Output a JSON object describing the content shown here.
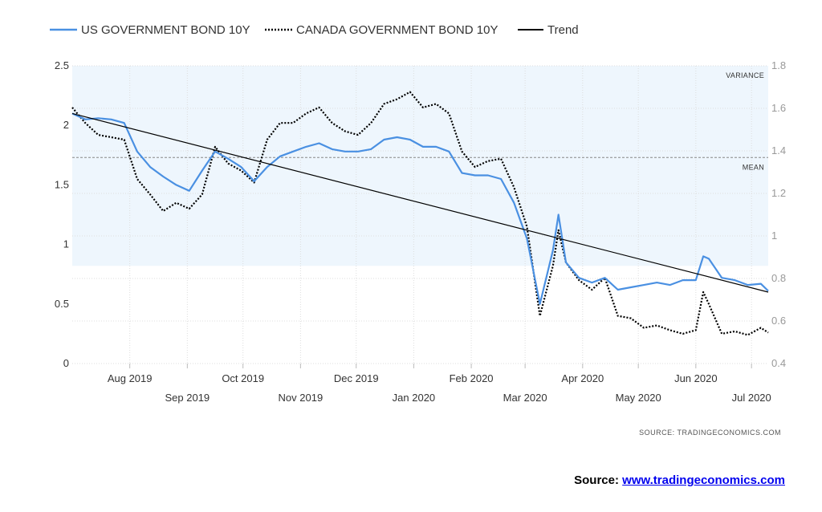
{
  "chart_data": {
    "type": "line",
    "legend": {
      "placement": "top-left",
      "entries": [
        "US GOVERNMENT BOND 10Y",
        "CANADA GOVERNMENT BOND 10Y",
        "Trend"
      ]
    },
    "x_range": [
      "2019-07-01",
      "2020-07-10"
    ],
    "x_ticks": [
      {
        "label": "Aug 2019",
        "date": "2019-08-01",
        "row": 1
      },
      {
        "label": "Sep 2019",
        "date": "2019-09-01",
        "row": 2
      },
      {
        "label": "Oct 2019",
        "date": "2019-10-01",
        "row": 1
      },
      {
        "label": "Nov 2019",
        "date": "2019-11-01",
        "row": 2
      },
      {
        "label": "Dec 2019",
        "date": "2019-12-01",
        "row": 1
      },
      {
        "label": "Jan 2020",
        "date": "2020-01-01",
        "row": 2
      },
      {
        "label": "Feb 2020",
        "date": "2020-02-01",
        "row": 1
      },
      {
        "label": "Mar 2020",
        "date": "2020-03-01",
        "row": 2
      },
      {
        "label": "Apr 2020",
        "date": "2020-04-01",
        "row": 1
      },
      {
        "label": "May 2020",
        "date": "2020-05-01",
        "row": 2
      },
      {
        "label": "Jun 2020",
        "date": "2020-06-01",
        "row": 1
      },
      {
        "label": "Jul 2020",
        "date": "2020-07-01",
        "row": 2
      }
    ],
    "y_left": {
      "min": 0,
      "max": 2.5,
      "ticks": [
        "0",
        "0.5",
        "1",
        "1.5",
        "2",
        "2.5"
      ]
    },
    "y_right": {
      "min": 0.4,
      "max": 1.8,
      "ticks": [
        "0.4",
        "0.6",
        "0.8",
        "1",
        "1.2",
        "1.4",
        "1.6",
        "1.8"
      ]
    },
    "grid": true,
    "variance_band": {
      "label": "VARIANCE",
      "from": 0.82,
      "to": 2.5
    },
    "mean_line": {
      "label": "MEAN",
      "value": 1.73
    },
    "source_label": "SOURCE: TRADINGECONOMICS.COM",
    "series": [
      {
        "name": "US GOVERNMENT BOND 10Y",
        "style": "solid",
        "color": "#4a90e2",
        "points": [
          [
            "2019-07-01",
            2.1
          ],
          [
            "2019-07-08",
            2.05
          ],
          [
            "2019-07-15",
            2.06
          ],
          [
            "2019-07-22",
            2.05
          ],
          [
            "2019-07-29",
            2.02
          ],
          [
            "2019-08-05",
            1.78
          ],
          [
            "2019-08-12",
            1.65
          ],
          [
            "2019-08-19",
            1.57
          ],
          [
            "2019-08-26",
            1.5
          ],
          [
            "2019-09-02",
            1.45
          ],
          [
            "2019-09-09",
            1.62
          ],
          [
            "2019-09-16",
            1.78
          ],
          [
            "2019-09-23",
            1.72
          ],
          [
            "2019-09-30",
            1.65
          ],
          [
            "2019-10-07",
            1.53
          ],
          [
            "2019-10-14",
            1.65
          ],
          [
            "2019-10-21",
            1.74
          ],
          [
            "2019-10-28",
            1.78
          ],
          [
            "2019-11-04",
            1.82
          ],
          [
            "2019-11-11",
            1.85
          ],
          [
            "2019-11-18",
            1.8
          ],
          [
            "2019-11-25",
            1.78
          ],
          [
            "2019-12-02",
            1.78
          ],
          [
            "2019-12-09",
            1.8
          ],
          [
            "2019-12-16",
            1.88
          ],
          [
            "2019-12-23",
            1.9
          ],
          [
            "2019-12-30",
            1.88
          ],
          [
            "2020-01-06",
            1.82
          ],
          [
            "2020-01-13",
            1.82
          ],
          [
            "2020-01-20",
            1.78
          ],
          [
            "2020-01-27",
            1.6
          ],
          [
            "2020-02-03",
            1.58
          ],
          [
            "2020-02-10",
            1.58
          ],
          [
            "2020-02-17",
            1.55
          ],
          [
            "2020-02-24",
            1.35
          ],
          [
            "2020-03-02",
            1.05
          ],
          [
            "2020-03-09",
            0.5
          ],
          [
            "2020-03-16",
            0.95
          ],
          [
            "2020-03-19",
            1.25
          ],
          [
            "2020-03-23",
            0.85
          ],
          [
            "2020-03-30",
            0.72
          ],
          [
            "2020-04-06",
            0.68
          ],
          [
            "2020-04-13",
            0.72
          ],
          [
            "2020-04-20",
            0.62
          ],
          [
            "2020-04-27",
            0.64
          ],
          [
            "2020-05-04",
            0.66
          ],
          [
            "2020-05-11",
            0.68
          ],
          [
            "2020-05-18",
            0.66
          ],
          [
            "2020-05-25",
            0.7
          ],
          [
            "2020-06-01",
            0.7
          ],
          [
            "2020-06-05",
            0.9
          ],
          [
            "2020-06-08",
            0.88
          ],
          [
            "2020-06-15",
            0.72
          ],
          [
            "2020-06-22",
            0.7
          ],
          [
            "2020-06-29",
            0.66
          ],
          [
            "2020-07-06",
            0.67
          ],
          [
            "2020-07-10",
            0.61
          ]
        ]
      },
      {
        "name": "CANADA GOVERNMENT BOND 10Y",
        "style": "dotted",
        "color": "#000000",
        "points": [
          [
            "2019-07-01",
            2.15
          ],
          [
            "2019-07-08",
            2.02
          ],
          [
            "2019-07-15",
            1.92
          ],
          [
            "2019-07-22",
            1.9
          ],
          [
            "2019-07-29",
            1.88
          ],
          [
            "2019-08-05",
            1.55
          ],
          [
            "2019-08-12",
            1.42
          ],
          [
            "2019-08-19",
            1.28
          ],
          [
            "2019-08-26",
            1.35
          ],
          [
            "2019-09-02",
            1.3
          ],
          [
            "2019-09-09",
            1.42
          ],
          [
            "2019-09-16",
            1.82
          ],
          [
            "2019-09-23",
            1.68
          ],
          [
            "2019-09-30",
            1.62
          ],
          [
            "2019-10-07",
            1.52
          ],
          [
            "2019-10-14",
            1.88
          ],
          [
            "2019-10-21",
            2.02
          ],
          [
            "2019-10-28",
            2.02
          ],
          [
            "2019-11-04",
            2.1
          ],
          [
            "2019-11-11",
            2.15
          ],
          [
            "2019-11-18",
            2.02
          ],
          [
            "2019-11-25",
            1.95
          ],
          [
            "2019-12-02",
            1.92
          ],
          [
            "2019-12-09",
            2.02
          ],
          [
            "2019-12-16",
            2.18
          ],
          [
            "2019-12-23",
            2.22
          ],
          [
            "2019-12-30",
            2.28
          ],
          [
            "2020-01-06",
            2.15
          ],
          [
            "2020-01-13",
            2.18
          ],
          [
            "2020-01-20",
            2.1
          ],
          [
            "2020-01-27",
            1.78
          ],
          [
            "2020-02-03",
            1.65
          ],
          [
            "2020-02-10",
            1.7
          ],
          [
            "2020-02-17",
            1.72
          ],
          [
            "2020-02-24",
            1.48
          ],
          [
            "2020-03-02",
            1.15
          ],
          [
            "2020-03-09",
            0.4
          ],
          [
            "2020-03-16",
            0.82
          ],
          [
            "2020-03-19",
            1.12
          ],
          [
            "2020-03-23",
            0.85
          ],
          [
            "2020-03-30",
            0.7
          ],
          [
            "2020-04-06",
            0.62
          ],
          [
            "2020-04-13",
            0.72
          ],
          [
            "2020-04-20",
            0.4
          ],
          [
            "2020-04-27",
            0.38
          ],
          [
            "2020-05-04",
            0.3
          ],
          [
            "2020-05-11",
            0.32
          ],
          [
            "2020-05-18",
            0.28
          ],
          [
            "2020-05-25",
            0.25
          ],
          [
            "2020-06-01",
            0.28
          ],
          [
            "2020-06-05",
            0.6
          ],
          [
            "2020-06-08",
            0.5
          ],
          [
            "2020-06-15",
            0.25
          ],
          [
            "2020-06-22",
            0.27
          ],
          [
            "2020-06-29",
            0.24
          ],
          [
            "2020-07-06",
            0.3
          ],
          [
            "2020-07-10",
            0.26
          ]
        ]
      },
      {
        "name": "Trend",
        "style": "solid",
        "color": "#000000",
        "points": [
          [
            "2019-07-01",
            2.1
          ],
          [
            "2020-07-10",
            0.6
          ]
        ]
      }
    ]
  },
  "footer": {
    "label": "Source:",
    "link": "www.tradingeconomics.com"
  }
}
